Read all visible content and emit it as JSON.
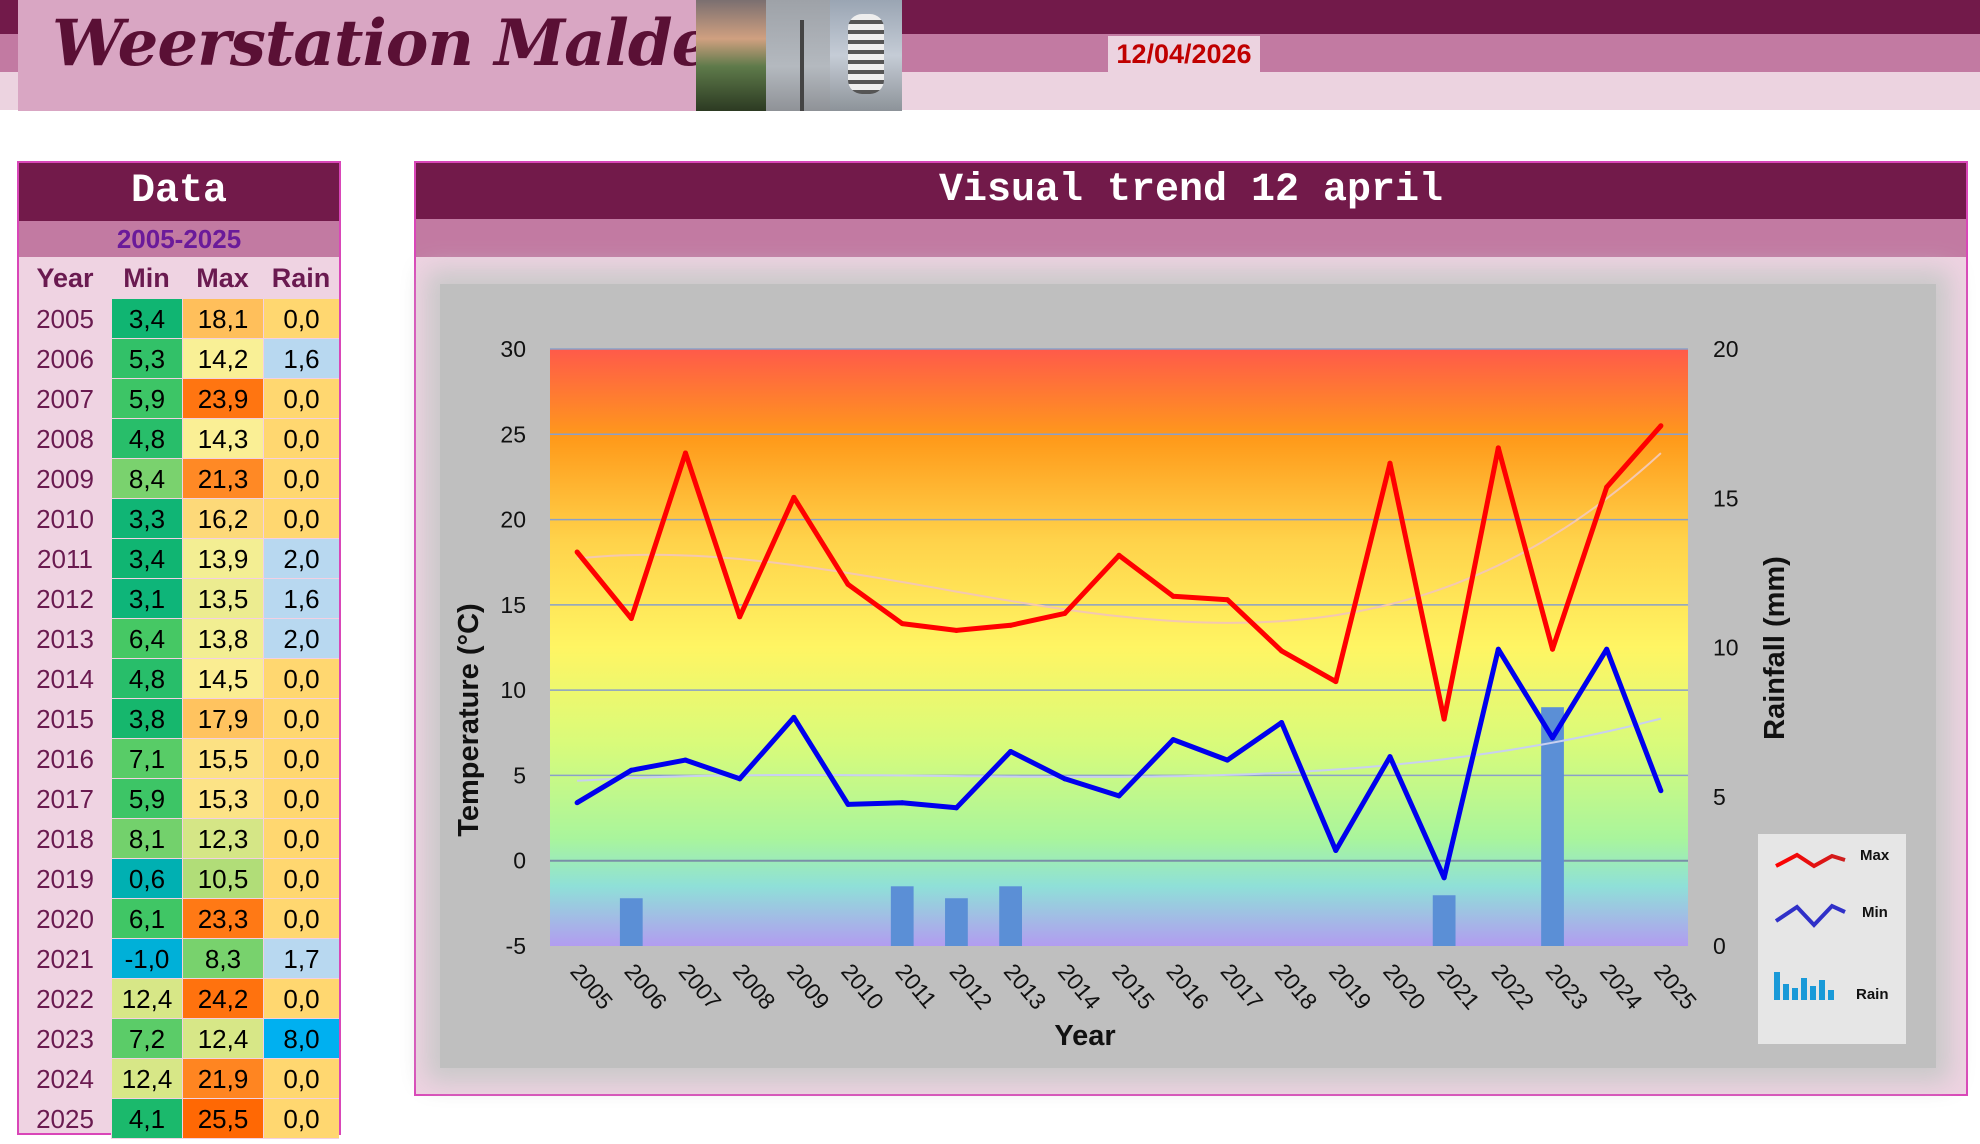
{
  "header": {
    "title": "Weerstation Malderen",
    "date": "12/04/2026"
  },
  "table": {
    "title": "Data",
    "range": "2005-2025",
    "headers": [
      "Year",
      "Min",
      "Max",
      "Rain"
    ],
    "rows": [
      {
        "year": "2005",
        "min": "3,4",
        "max": "18,1",
        "rain": "0,0"
      },
      {
        "year": "2006",
        "min": "5,3",
        "max": "14,2",
        "rain": "1,6"
      },
      {
        "year": "2007",
        "min": "5,9",
        "max": "23,9",
        "rain": "0,0"
      },
      {
        "year": "2008",
        "min": "4,8",
        "max": "14,3",
        "rain": "0,0"
      },
      {
        "year": "2009",
        "min": "8,4",
        "max": "21,3",
        "rain": "0,0"
      },
      {
        "year": "2010",
        "min": "3,3",
        "max": "16,2",
        "rain": "0,0"
      },
      {
        "year": "2011",
        "min": "3,4",
        "max": "13,9",
        "rain": "2,0"
      },
      {
        "year": "2012",
        "min": "3,1",
        "max": "13,5",
        "rain": "1,6"
      },
      {
        "year": "2013",
        "min": "6,4",
        "max": "13,8",
        "rain": "2,0"
      },
      {
        "year": "2014",
        "min": "4,8",
        "max": "14,5",
        "rain": "0,0"
      },
      {
        "year": "2015",
        "min": "3,8",
        "max": "17,9",
        "rain": "0,0"
      },
      {
        "year": "2016",
        "min": "7,1",
        "max": "15,5",
        "rain": "0,0"
      },
      {
        "year": "2017",
        "min": "5,9",
        "max": "15,3",
        "rain": "0,0"
      },
      {
        "year": "2018",
        "min": "8,1",
        "max": "12,3",
        "rain": "0,0"
      },
      {
        "year": "2019",
        "min": "0,6",
        "max": "10,5",
        "rain": "0,0"
      },
      {
        "year": "2020",
        "min": "6,1",
        "max": "23,3",
        "rain": "0,0"
      },
      {
        "year": "2021",
        "min": "-1,0",
        "max": "8,3",
        "rain": "1,7"
      },
      {
        "year": "2022",
        "min": "12,4",
        "max": "24,2",
        "rain": "0,0"
      },
      {
        "year": "2023",
        "min": "7,2",
        "max": "12,4",
        "rain": "8,0"
      },
      {
        "year": "2024",
        "min": "12,4",
        "max": "21,9",
        "rain": "0,0"
      },
      {
        "year": "2025",
        "min": "4,1",
        "max": "25,5",
        "rain": "0,0"
      }
    ]
  },
  "chart_data": {
    "type": "line",
    "title": "Visual trend 12 april",
    "xlabel": "Year",
    "ylabel": "Temperature (°C)",
    "y2label": "Rainfall (mm)",
    "categories": [
      "2005",
      "2006",
      "2007",
      "2008",
      "2009",
      "2010",
      "2011",
      "2012",
      "2013",
      "2014",
      "2015",
      "2016",
      "2017",
      "2018",
      "2019",
      "2020",
      "2021",
      "2022",
      "2023",
      "2024",
      "2025"
    ],
    "ylim": [
      -5,
      30
    ],
    "yticks": [
      -5,
      0,
      5,
      10,
      15,
      20,
      25,
      30
    ],
    "y2lim": [
      0,
      20
    ],
    "y2ticks": [
      0,
      5,
      10,
      15,
      20
    ],
    "grid": true,
    "legend_position": "bottom-right",
    "series": [
      {
        "name": "Max",
        "type": "line",
        "axis": "left",
        "color": "#ff0000",
        "values": [
          18.1,
          14.2,
          23.9,
          14.3,
          21.3,
          16.2,
          13.9,
          13.5,
          13.8,
          14.5,
          17.9,
          15.5,
          15.3,
          12.3,
          10.5,
          23.3,
          8.3,
          24.2,
          12.4,
          21.9,
          25.5
        ]
      },
      {
        "name": "Min",
        "type": "line",
        "axis": "left",
        "color": "#0000ee",
        "values": [
          3.4,
          5.3,
          5.9,
          4.8,
          8.4,
          3.3,
          3.4,
          3.1,
          6.4,
          4.8,
          3.8,
          7.1,
          5.9,
          8.1,
          0.6,
          6.1,
          -1.0,
          12.4,
          7.2,
          12.4,
          4.1
        ]
      },
      {
        "name": "Rain",
        "type": "bar",
        "axis": "right",
        "color": "#5b8fd6",
        "values": [
          0,
          1.6,
          0,
          0,
          0,
          0,
          2.0,
          1.6,
          2.0,
          0,
          0,
          0,
          0,
          0,
          0,
          0,
          1.7,
          0,
          8.0,
          0,
          0
        ]
      }
    ],
    "trendlines": true
  },
  "colors": {
    "header_dark": "#721a4a",
    "header_mid": "#c27aa2",
    "header_light": "#ecd3e0",
    "panel_border": "#d946b8",
    "date_text": "#c00000"
  }
}
